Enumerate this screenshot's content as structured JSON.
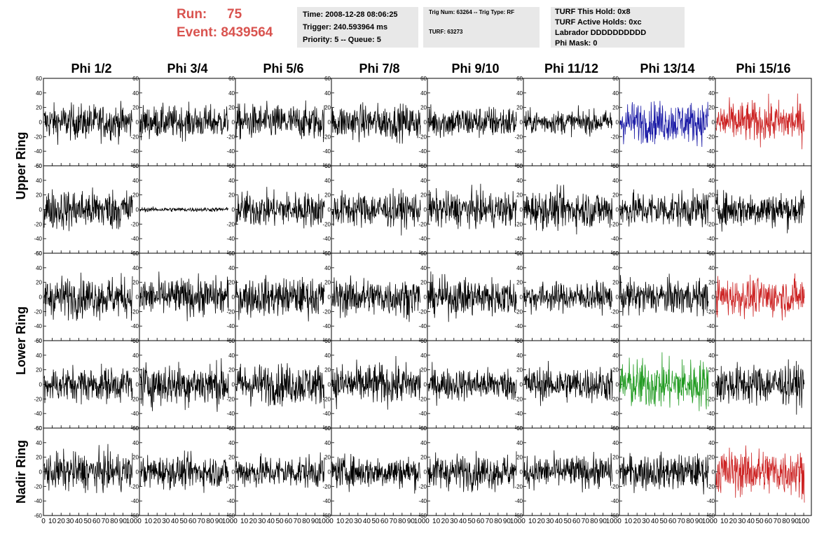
{
  "header": {
    "run_label": "Run:",
    "run_value": "75",
    "event_label": "Event:",
    "event_value": "8439564",
    "time": "Time: 2008-12-28 08:06:25",
    "trigger": "Trigger: 240.593964 ms",
    "priority": "Priority: 5 -- Queue: 5",
    "trig_num": "Trig Num: 63264 -- Trig Type: RF",
    "turf": "TURF: 63273",
    "turf_this_hold": "TURF This Hold: 0x8",
    "turf_active_holds": "TURF Active Holds: 0xc",
    "labrador": "Labrador DDDDDDDDDD",
    "phi_mask": "Phi Mask: 0"
  },
  "colors": {
    "run_text": "#d9534f",
    "info_bg": "#e8e8e8",
    "trace_default": "#000000",
    "trace_blue": "#1a1aa6",
    "trace_red": "#cc2222",
    "trace_green": "#1f9a1f"
  },
  "chart_data": {
    "type": "line",
    "description": "Grid of waveform panels (voltage vs sample), 8 phi columns x 5 antenna rows",
    "columns": [
      "Phi 1/2",
      "Phi 3/4",
      "Phi 5/6",
      "Phi 7/8",
      "Phi 9/10",
      "Phi 11/12",
      "Phi 13/14",
      "Phi 15/16"
    ],
    "row_groups": [
      {
        "label": "Upper Ring",
        "rows": [
          0,
          1
        ]
      },
      {
        "label": "Lower Ring",
        "rows": [
          2,
          3
        ]
      },
      {
        "label": "Nadir Ring",
        "rows": [
          4
        ]
      }
    ],
    "ylim": [
      -60,
      60
    ],
    "yticks": [
      -60,
      -40,
      -20,
      0,
      20,
      40,
      60
    ],
    "xlim": [
      0,
      100
    ],
    "xtick_labels": [
      "0",
      "10",
      "20",
      "30",
      "40",
      "50",
      "60",
      "70",
      "80",
      "90",
      "100"
    ],
    "samples_per_trace": 260,
    "panels": [
      [
        {
          "amp": 12,
          "color": "#000000"
        },
        {
          "amp": 11,
          "color": "#000000"
        },
        {
          "amp": 12,
          "color": "#000000"
        },
        {
          "amp": 12,
          "color": "#000000"
        },
        {
          "amp": 11,
          "color": "#000000"
        },
        {
          "amp": 8,
          "color": "#000000"
        },
        {
          "amp": 14,
          "color": "#1a1aa6"
        },
        {
          "amp": 14,
          "color": "#cc2222"
        }
      ],
      [
        {
          "amp": 14,
          "color": "#000000"
        },
        {
          "amp": 1.5,
          "color": "#000000"
        },
        {
          "amp": 12,
          "color": "#000000"
        },
        {
          "amp": 12,
          "color": "#000000"
        },
        {
          "amp": 12,
          "color": "#000000"
        },
        {
          "amp": 13,
          "color": "#000000"
        },
        {
          "amp": 12,
          "color": "#000000"
        },
        {
          "amp": 12,
          "color": "#000000"
        }
      ],
      [
        {
          "amp": 14,
          "color": "#000000"
        },
        {
          "amp": 13,
          "color": "#000000"
        },
        {
          "amp": 13,
          "color": "#000000"
        },
        {
          "amp": 13,
          "color": "#000000"
        },
        {
          "amp": 13,
          "color": "#000000"
        },
        {
          "amp": 10,
          "color": "#000000"
        },
        {
          "amp": 12,
          "color": "#000000"
        },
        {
          "amp": 13,
          "color": "#cc2222"
        }
      ],
      [
        {
          "amp": 12,
          "color": "#000000"
        },
        {
          "amp": 15,
          "color": "#000000"
        },
        {
          "amp": 14,
          "color": "#000000"
        },
        {
          "amp": 14,
          "color": "#000000"
        },
        {
          "amp": 11,
          "color": "#000000"
        },
        {
          "amp": 12,
          "color": "#000000"
        },
        {
          "amp": 17,
          "color": "#1f9a1f"
        },
        {
          "amp": 14,
          "color": "#000000"
        }
      ],
      [
        {
          "amp": 13,
          "color": "#000000"
        },
        {
          "amp": 11,
          "color": "#000000"
        },
        {
          "amp": 11,
          "color": "#000000"
        },
        {
          "amp": 11,
          "color": "#000000"
        },
        {
          "amp": 12,
          "color": "#000000"
        },
        {
          "amp": 11,
          "color": "#000000"
        },
        {
          "amp": 12,
          "color": "#000000"
        },
        {
          "amp": 16,
          "color": "#cc2222"
        }
      ]
    ]
  }
}
